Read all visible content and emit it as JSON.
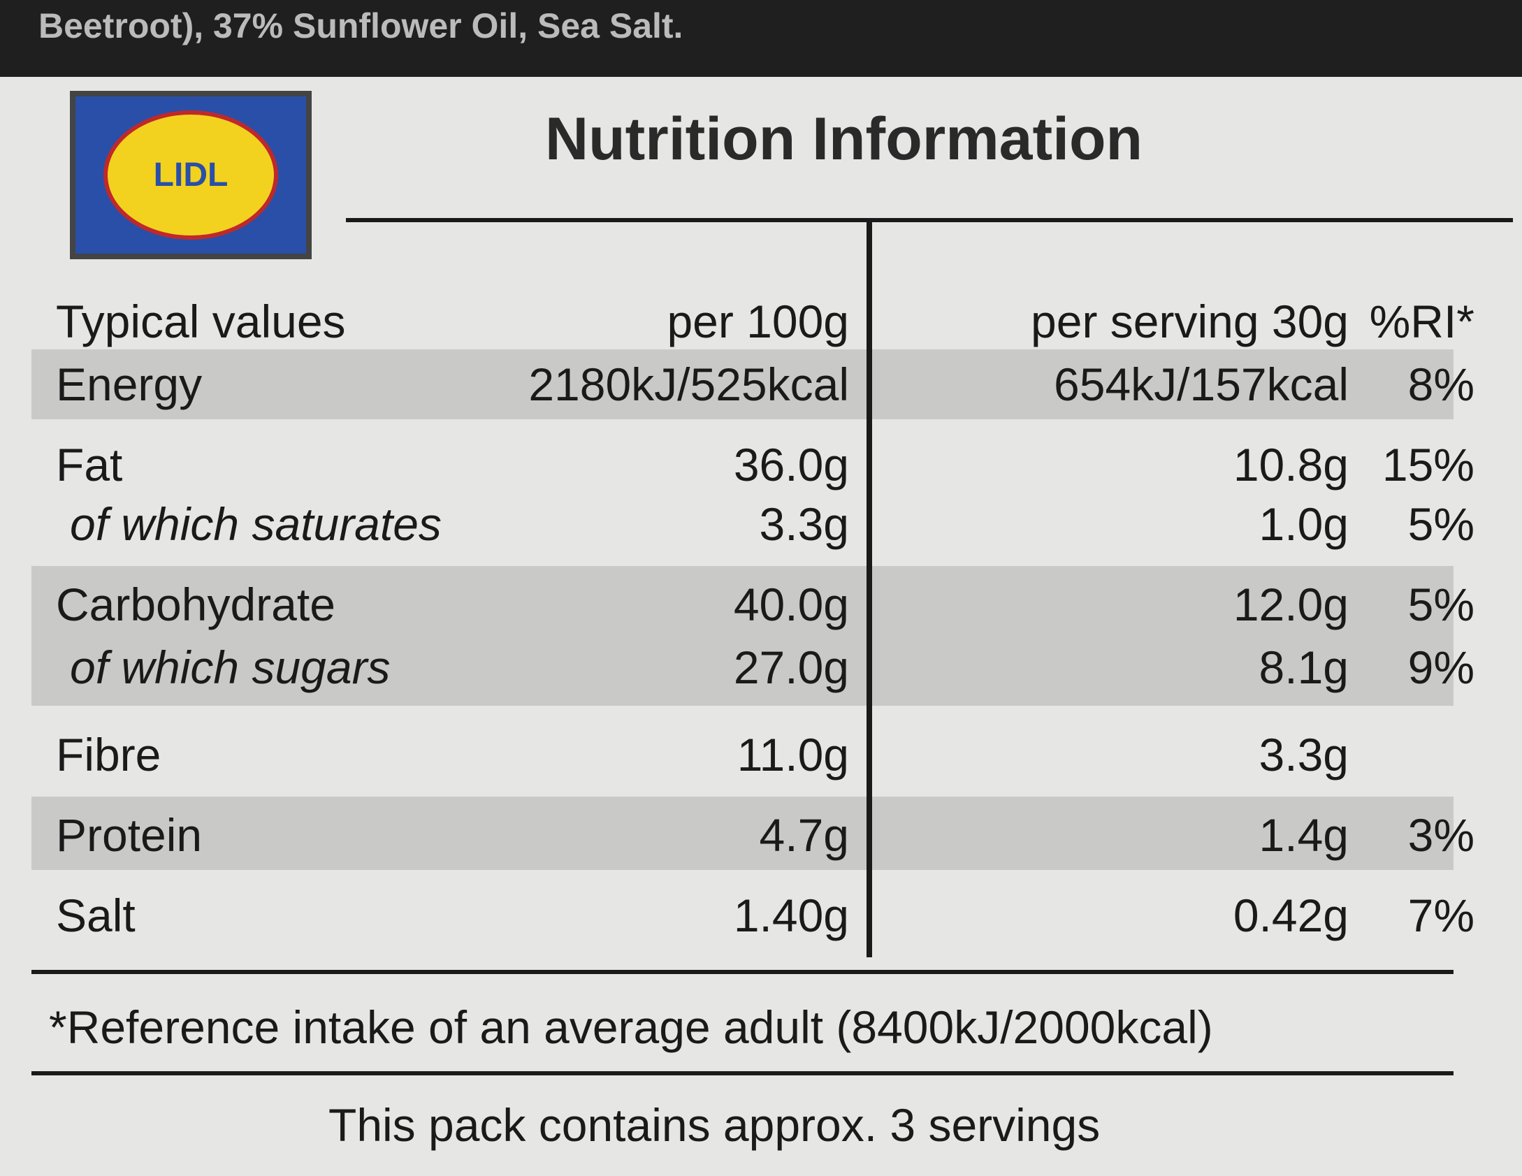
{
  "ingredients_tail": "Beetroot), 37% Sunflower Oil, Sea Salt.",
  "logo": "LIDL",
  "title": "Nutrition Information",
  "table": {
    "header": [
      "Typical values",
      "per 100g",
      "per serving 30g",
      "%RI*"
    ],
    "rows": [
      [
        "Energy",
        "2180kJ/525kcal",
        "654kJ/157kcal",
        "8%"
      ],
      [
        "Fat",
        "36.0g",
        "10.8g",
        "15%"
      ],
      [
        "of which saturates",
        "3.3g",
        "1.0g",
        "5%"
      ],
      [
        "Carbohydrate",
        "40.0g",
        "12.0g",
        "5%"
      ],
      [
        "of which sugars",
        "27.0g",
        "8.1g",
        "9%"
      ],
      [
        "Fibre",
        "11.0g",
        "3.3g",
        null
      ],
      [
        "Protein",
        "4.7g",
        "1.4g",
        "3%"
      ],
      [
        "Salt",
        "1.40g",
        "0.42g",
        "7%"
      ]
    ]
  },
  "footnote": "*Reference intake of an average adult (8400kJ/2000kcal)",
  "servings_note": "This pack contains approx. 3 servings"
}
